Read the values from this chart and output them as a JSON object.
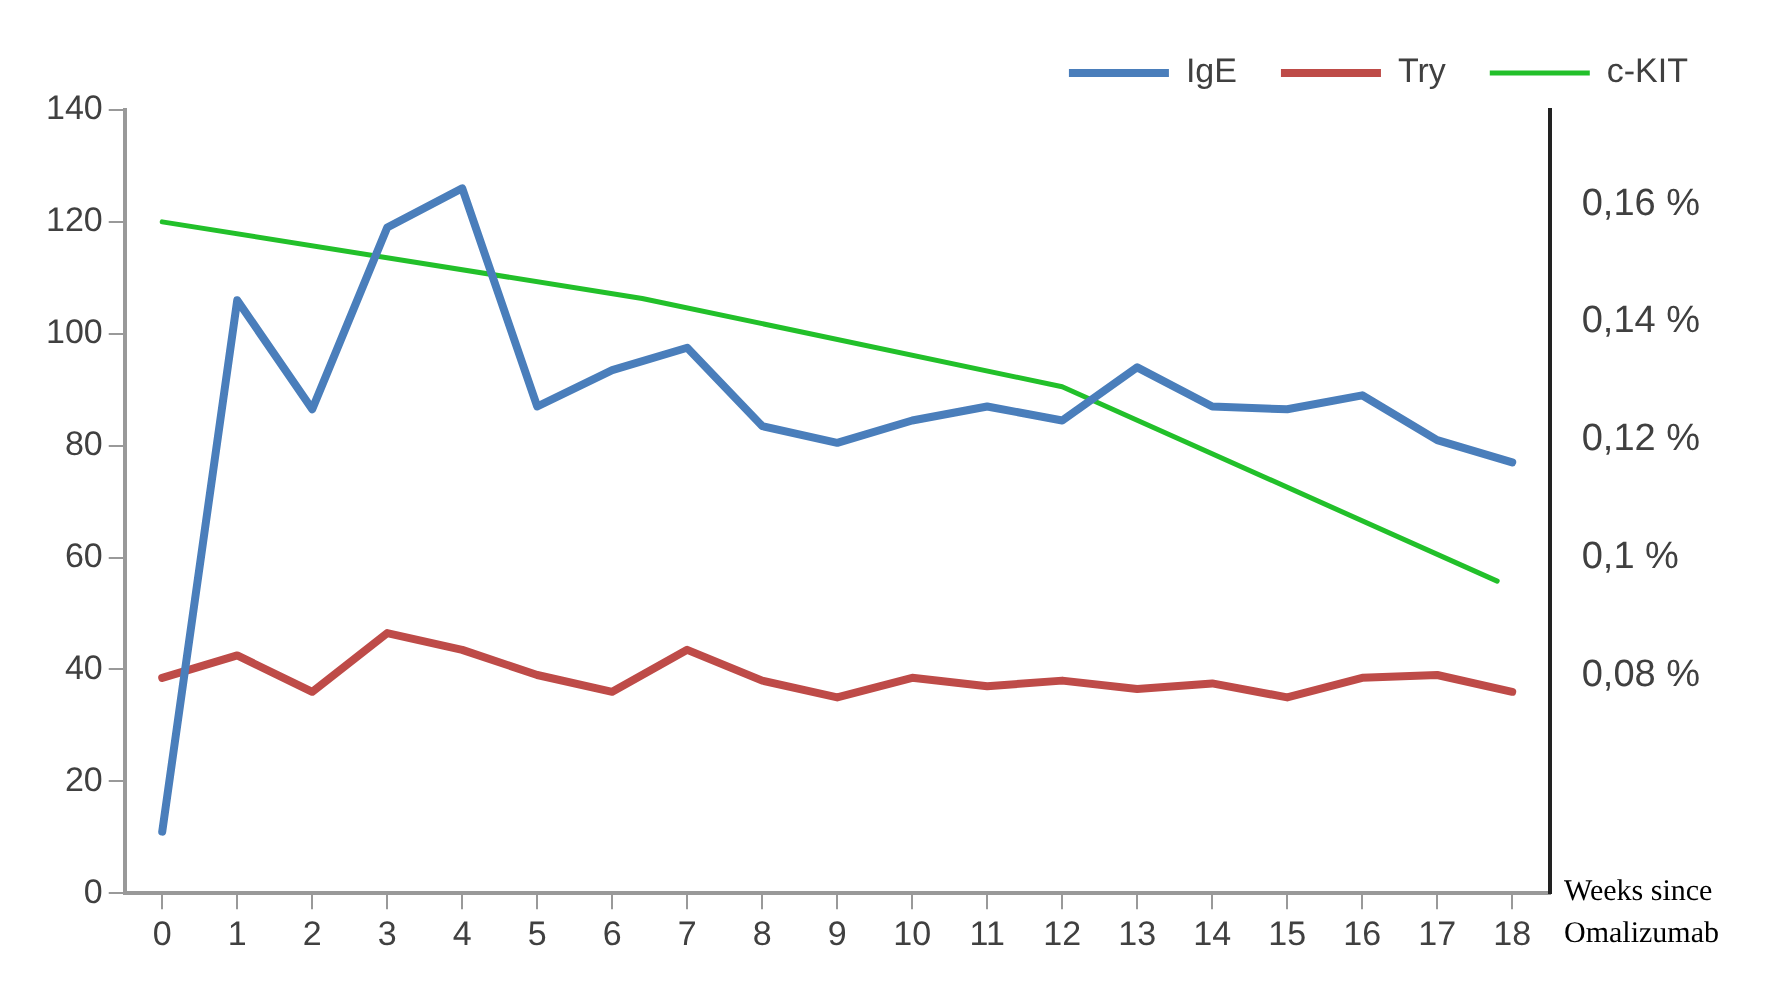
{
  "chart_data": {
    "type": "line",
    "xlabel": "Weeks since Omalizumab",
    "x": [
      0,
      1,
      2,
      3,
      4,
      5,
      6,
      7,
      8,
      9,
      10,
      11,
      12,
      13,
      14,
      15,
      16,
      17,
      18
    ],
    "xlim": [
      -0.5,
      18.5
    ],
    "xticks": [
      0,
      1,
      2,
      3,
      4,
      5,
      6,
      7,
      8,
      9,
      10,
      11,
      12,
      13,
      14,
      15,
      16,
      17,
      18
    ],
    "ylim": [
      0,
      140
    ],
    "yticks": [
      0,
      20,
      40,
      60,
      80,
      100,
      120,
      140
    ],
    "y2lim": [
      0.043,
      0.176
    ],
    "y2ticks": [
      {
        "value": 0.08,
        "label": "0,08 %"
      },
      {
        "value": 0.1,
        "label": "0,1 %"
      },
      {
        "value": 0.12,
        "label": "0,12 %"
      },
      {
        "value": 0.14,
        "label": "0,14 %"
      },
      {
        "value": 0.16,
        "label": "0,16 %"
      }
    ],
    "series": [
      {
        "name": "IgE",
        "color": "#4a7ebb",
        "values": [
          11,
          106,
          86.5,
          119,
          126,
          87,
          93.5,
          97.5,
          83.5,
          80.5,
          84.5,
          87,
          84.5,
          94,
          87,
          86.5,
          89,
          81,
          77
        ]
      },
      {
        "name": "Try",
        "color": "#be4b48",
        "values": [
          38.5,
          42.5,
          36,
          46.5,
          43.5,
          39,
          36,
          43.5,
          38,
          35,
          38.5,
          37,
          38,
          36.5,
          37.5,
          35,
          38.5,
          39,
          36
        ]
      },
      {
        "name": "c-KIT",
        "color": "#22c02a",
        "axis": "y2",
        "x": [
          0,
          6.4,
          12,
          17.8
        ],
        "values": [
          0.157,
          0.144,
          0.129,
          0.096
        ]
      }
    ],
    "grid": false,
    "legend": "top right",
    "marker": "none",
    "line_style": "solid"
  }
}
